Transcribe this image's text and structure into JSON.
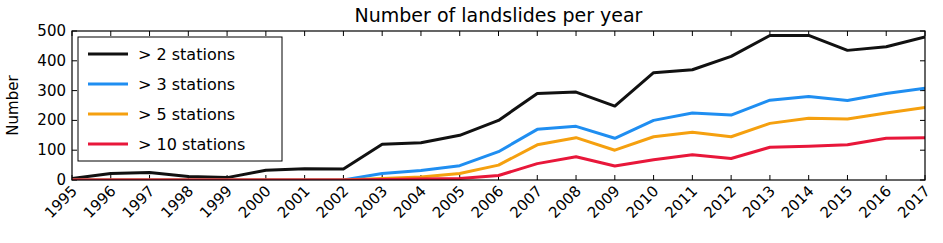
{
  "chart_data": {
    "type": "line",
    "title": "Number of landslides per year",
    "y_label": "Number",
    "categories": [
      "1995",
      "1996",
      "1997",
      "1998",
      "1999",
      "2000",
      "2001",
      "2002",
      "2003",
      "2004",
      "2005",
      "2006",
      "2007",
      "2008",
      "2009",
      "2010",
      "2011",
      "2012",
      "2013",
      "2014",
      "2015",
      "2016",
      "2017"
    ],
    "ylim": [
      0,
      500
    ],
    "yticks": [
      0,
      100,
      200,
      300,
      400,
      500
    ],
    "grid": false,
    "legend": "upper left",
    "series": [
      {
        "name": "> 2 stations",
        "color": "#111111",
        "values": [
          5,
          22,
          25,
          12,
          8,
          33,
          38,
          37,
          120,
          125,
          150,
          200,
          290,
          295,
          248,
          360,
          370,
          415,
          485,
          485,
          435,
          447,
          480
        ]
      },
      {
        "name": "> 3 stations",
        "color": "#1f8ef1",
        "values": [
          0,
          0,
          0,
          0,
          0,
          0,
          0,
          0,
          22,
          32,
          48,
          95,
          170,
          180,
          140,
          200,
          225,
          218,
          268,
          280,
          267,
          290,
          308
        ]
      },
      {
        "name": "> 5 stations",
        "color": "#f5a00f",
        "values": [
          0,
          0,
          0,
          0,
          0,
          0,
          0,
          0,
          5,
          10,
          22,
          50,
          118,
          142,
          100,
          145,
          160,
          145,
          190,
          207,
          205,
          225,
          243
        ]
      },
      {
        "name": "> 10 stations",
        "color": "#e8173a",
        "values": [
          0,
          0,
          0,
          0,
          0,
          0,
          0,
          0,
          2,
          3,
          5,
          15,
          55,
          78,
          47,
          68,
          85,
          72,
          110,
          113,
          118,
          140,
          142
        ]
      }
    ]
  }
}
